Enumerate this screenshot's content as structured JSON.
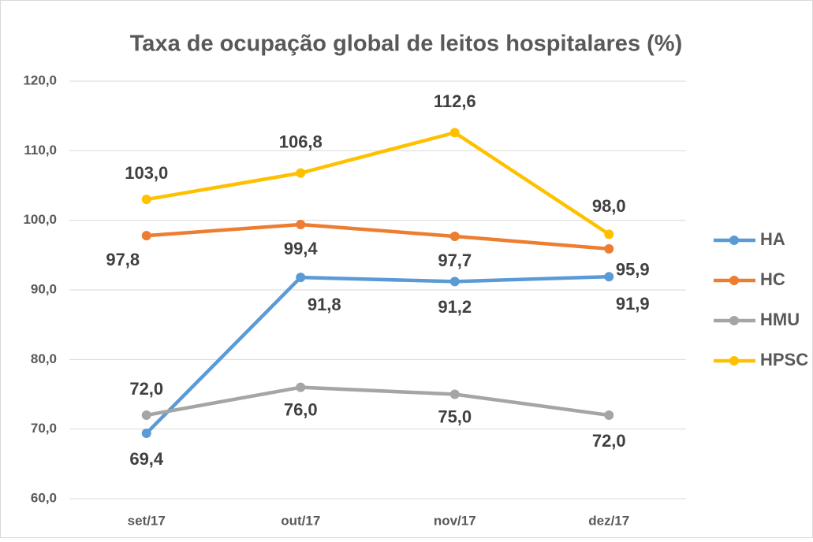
{
  "chart_data": {
    "type": "line",
    "title": "Taxa de ocupação global de leitos hospitalares (%)",
    "categories": [
      "set/17",
      "out/17",
      "nov/17",
      "dez/17"
    ],
    "series": [
      {
        "name": "HA",
        "color": "#5b9bd5",
        "values": [
          69.4,
          91.8,
          91.2,
          91.9
        ],
        "value_labels": [
          "69,4",
          "91,8",
          "91,2",
          "91,9"
        ]
      },
      {
        "name": "HC",
        "color": "#ed7d31",
        "values": [
          97.8,
          99.4,
          97.7,
          95.9
        ],
        "value_labels": [
          "97,8",
          "99,4",
          "97,7",
          "95,9"
        ]
      },
      {
        "name": "HMU",
        "color": "#a5a5a5",
        "values": [
          72.0,
          76.0,
          75.0,
          72.0
        ],
        "value_labels": [
          "72,0",
          "76,0",
          "75,0",
          "72,0"
        ]
      },
      {
        "name": "HPSC",
        "color": "#ffc000",
        "values": [
          103.0,
          106.8,
          112.6,
          98.0
        ],
        "value_labels": [
          "103,0",
          "106,8",
          "112,6",
          "98,0"
        ]
      }
    ],
    "ylim": [
      60,
      120
    ],
    "yticks": [
      {
        "value": 60,
        "label": "60,0"
      },
      {
        "value": 70,
        "label": "70,0"
      },
      {
        "value": 80,
        "label": "80,0"
      },
      {
        "value": 90,
        "label": "90,0"
      },
      {
        "value": 100,
        "label": "100,0"
      },
      {
        "value": 110,
        "label": "110,0"
      },
      {
        "value": 120,
        "label": "120,0"
      }
    ],
    "grid": true,
    "legend": "right"
  }
}
